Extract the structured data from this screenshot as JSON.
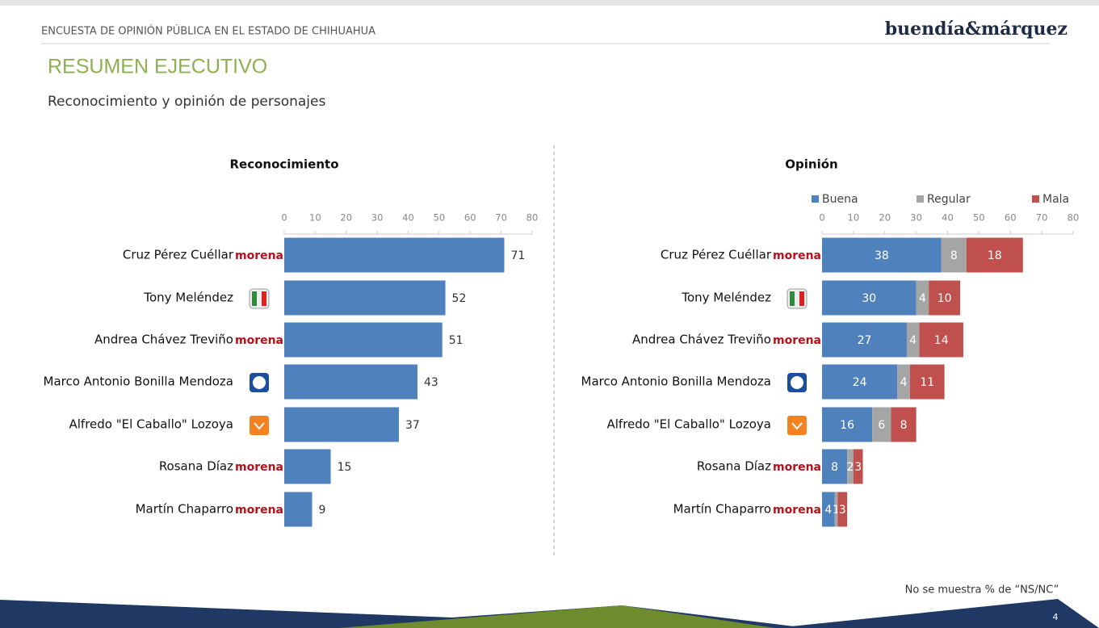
{
  "header": {
    "survey": "ENCUESTA DE OPINIÓN PÚBLICA EN EL ESTADO DE CHIHUAHUA",
    "brand": "buendía&márquez",
    "title": "RESUMEN EJECUTIVO",
    "subtitle": "Reconocimiento y opinión de personajes"
  },
  "footer": {
    "note": "No se muestra % de “NS/NC”",
    "page": "4"
  },
  "chart_data": [
    {
      "type": "bar",
      "title": "Reconocimiento",
      "categories": [
        "Cruz Pérez Cuéllar",
        "Tony Meléndez",
        "Andrea Chávez Treviño",
        "Marco Antonio Bonilla Mendoza",
        "Alfredo \"El Caballo\" Lozoya",
        "Rosana Díaz",
        "Martín Chaparro"
      ],
      "party_labels": [
        "morena",
        null,
        "morena",
        null,
        null,
        "morena",
        "morena"
      ],
      "values": [
        71,
        52,
        51,
        43,
        37,
        15,
        9
      ],
      "color": "#4f81bd",
      "xlim": [
        0,
        80
      ],
      "xticks": [
        0,
        10,
        20,
        30,
        40,
        50,
        60,
        70,
        80
      ]
    },
    {
      "type": "stacked_bar",
      "title": "Opinión",
      "categories": [
        "Cruz Pérez Cuéllar",
        "Tony Meléndez",
        "Andrea Chávez Treviño",
        "Marco Antonio Bonilla Mendoza",
        "Alfredo \"El Caballo\" Lozoya",
        "Rosana Díaz",
        "Martín Chaparro"
      ],
      "party_labels": [
        "morena",
        null,
        "morena",
        null,
        null,
        "morena",
        "morena"
      ],
      "series": [
        {
          "name": "Buena",
          "color": "#4f81bd",
          "values": [
            38,
            30,
            27,
            24,
            16,
            8,
            4
          ]
        },
        {
          "name": "Regular",
          "color": "#a5a5a5",
          "values": [
            8,
            4,
            4,
            4,
            6,
            2,
            1
          ]
        },
        {
          "name": "Mala",
          "color": "#c0504d",
          "values": [
            18,
            10,
            14,
            11,
            8,
            3,
            3
          ]
        }
      ],
      "legend": "top",
      "xlim": [
        0,
        80
      ],
      "xticks": [
        0,
        10,
        20,
        30,
        40,
        50,
        60,
        70,
        80
      ]
    }
  ]
}
